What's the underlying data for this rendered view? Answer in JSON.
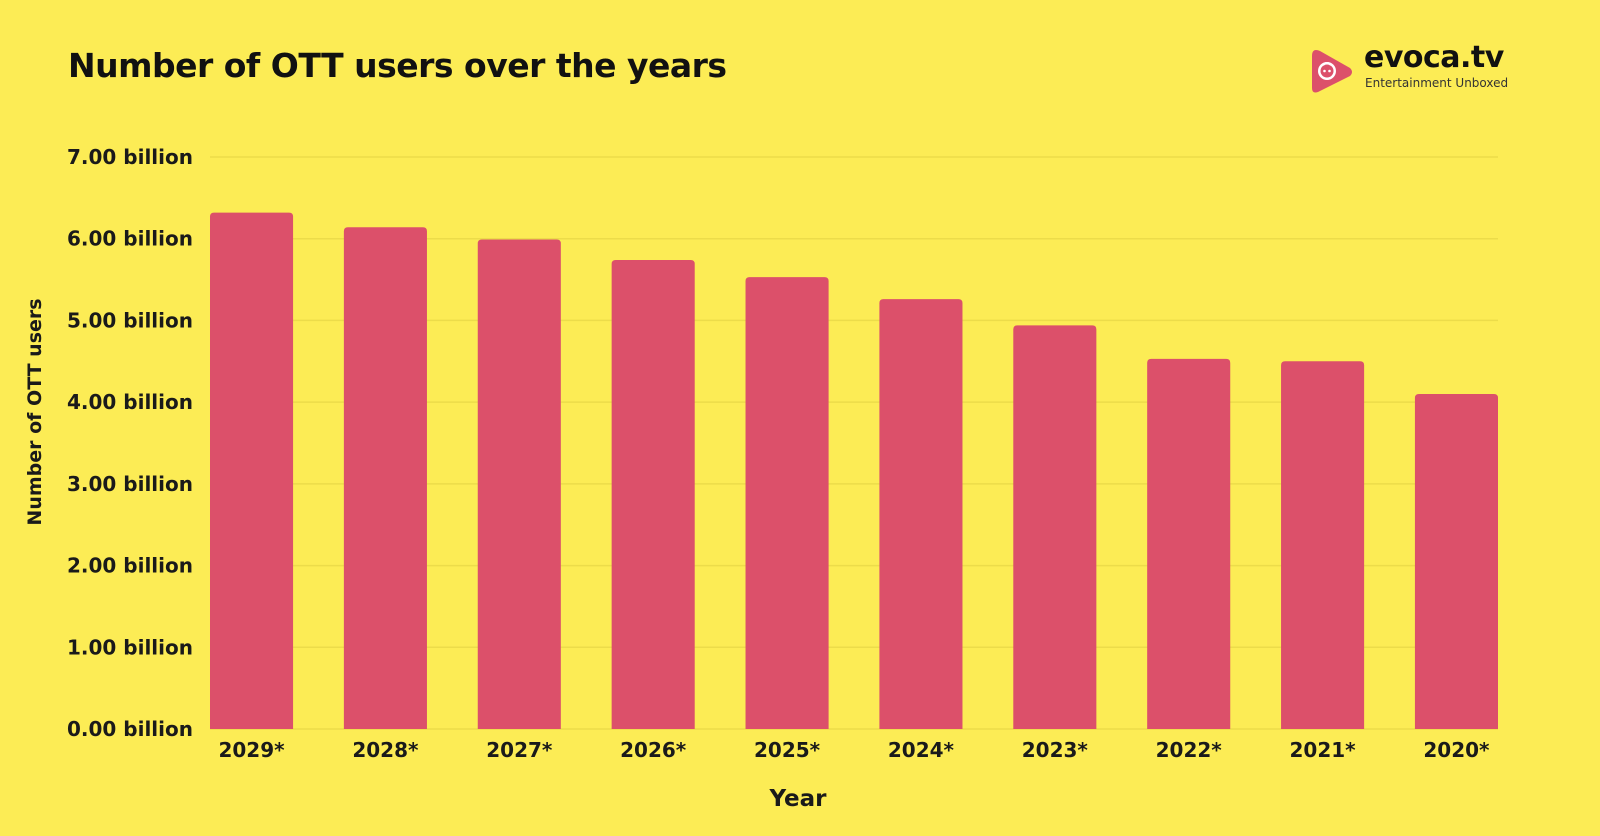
{
  "brand": {
    "name": "evoca.tv",
    "tagline": "Entertainment Unboxed",
    "accent_color": "#dc506a"
  },
  "colors": {
    "background": "#fcec55",
    "bar": "#dc506a",
    "grid": "#ecdc4a",
    "text": "#1a1a1a"
  },
  "chart_data": {
    "type": "bar",
    "title": "Number of OTT users over the years",
    "xlabel": "Year",
    "ylabel": "Number of OTT users",
    "categories": [
      "2029*",
      "2028*",
      "2027*",
      "2026*",
      "2025*",
      "2024*",
      "2023*",
      "2022*",
      "2021*",
      "2020*"
    ],
    "values": [
      6.32,
      6.14,
      5.99,
      5.74,
      5.53,
      5.26,
      4.94,
      4.53,
      4.5,
      4.1
    ],
    "unit": "billion",
    "ylim": [
      0,
      7
    ],
    "yticks": [
      "0.00 billion",
      "1.00 billion",
      "2.00 billion",
      "3.00 billion",
      "4.00 billion",
      "5.00 billion",
      "6.00 billion",
      "7.00 billion"
    ],
    "grid": true,
    "legend": "none"
  }
}
